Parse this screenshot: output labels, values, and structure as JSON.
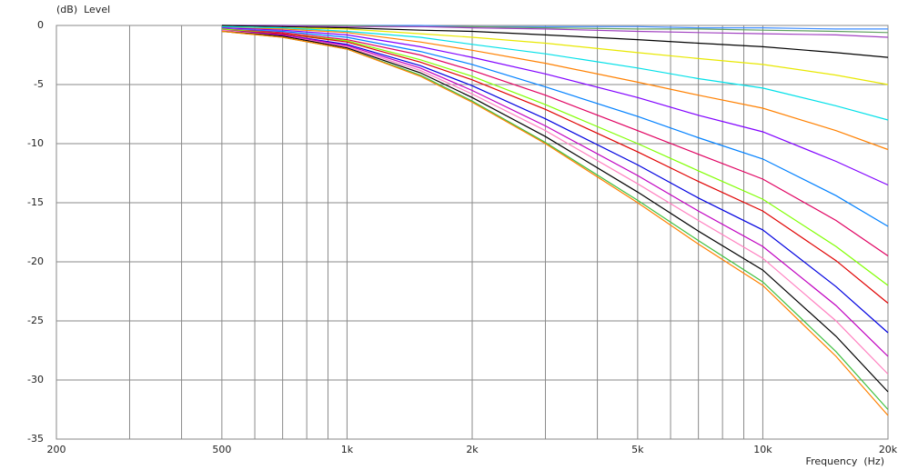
{
  "chart_data": {
    "type": "line",
    "y_label": "(dB)  Level",
    "x_label": "Frequency  (Hz)",
    "log_x": true,
    "grid": true,
    "xlim": [
      200,
      20000
    ],
    "ylim": [
      -35,
      0
    ],
    "xticks": [
      200,
      500,
      {
        "value": 1000,
        "label": "1k"
      },
      {
        "value": 2000,
        "label": "2k"
      },
      {
        "value": 5000,
        "label": "5k"
      },
      {
        "value": 10000,
        "label": "10k"
      },
      {
        "value": 20000,
        "label": "20k"
      }
    ],
    "x_minor_ticks": [
      300,
      400,
      600,
      700,
      800,
      900,
      3000,
      4000,
      6000,
      7000,
      8000,
      9000
    ],
    "yticks": [
      0,
      -5,
      -10,
      -15,
      -20,
      -25,
      -30,
      -35
    ],
    "x": [
      500,
      700,
      1000,
      1500,
      2000,
      3000,
      5000,
      7000,
      10000,
      15000,
      20000
    ],
    "series": [
      {
        "color": "#3d8cff",
        "values": [
          0,
          0,
          0,
          0,
          -0.1,
          -0.1,
          -0.1,
          -0.2,
          -0.2,
          -0.3,
          -0.3
        ]
      },
      {
        "color": "#5fa05f",
        "values": [
          0,
          0,
          0,
          -0.1,
          -0.1,
          -0.2,
          -0.3,
          -0.3,
          -0.4,
          -0.5,
          -0.6
        ]
      },
      {
        "color": "#a040c0",
        "values": [
          0,
          0,
          -0.1,
          -0.1,
          -0.2,
          -0.3,
          -0.5,
          -0.6,
          -0.7,
          -0.8,
          -1
        ]
      },
      {
        "color": "#000000",
        "values": [
          0,
          -0.1,
          -0.2,
          -0.4,
          -0.5,
          -0.8,
          -1.2,
          -1.5,
          -1.8,
          -2.3,
          -2.7
        ]
      },
      {
        "color": "#e8e800",
        "values": [
          -0.1,
          -0.2,
          -0.3,
          -0.7,
          -1,
          -1.5,
          -2.3,
          -2.8,
          -3.3,
          -4.2,
          -5
        ]
      },
      {
        "color": "#00e0e8",
        "values": [
          -0.1,
          -0.2,
          -0.5,
          -1,
          -1.6,
          -2.4,
          -3.6,
          -4.5,
          -5.3,
          -6.8,
          -8
        ]
      },
      {
        "color": "#ff8000",
        "values": [
          -0.2,
          -0.3,
          -0.6,
          -1.4,
          -2.1,
          -3.2,
          -4.8,
          -5.9,
          -7,
          -8.9,
          -10.5
        ]
      },
      {
        "color": "#8000ff",
        "values": [
          -0.2,
          -0.4,
          -0.8,
          -1.8,
          -2.7,
          -4.1,
          -6.1,
          -7.6,
          -9,
          -11.5,
          -13.5
        ]
      },
      {
        "color": "#0080ff",
        "values": [
          -0.3,
          -0.5,
          -1,
          -2.2,
          -3.3,
          -5.2,
          -7.7,
          -9.5,
          -11.3,
          -14.4,
          -17
        ]
      },
      {
        "color": "#e00060",
        "values": [
          -0.3,
          -0.6,
          -1.2,
          -2.5,
          -3.8,
          -5.9,
          -8.9,
          -10.9,
          -13,
          -16.5,
          -19.5
        ]
      },
      {
        "color": "#80ff00",
        "values": [
          -0.3,
          -0.7,
          -1.3,
          -2.9,
          -4.3,
          -6.7,
          -10,
          -12.3,
          -14.7,
          -18.7,
          -22
        ]
      },
      {
        "color": "#e00000",
        "values": [
          -0.4,
          -0.7,
          -1.4,
          -3.1,
          -4.6,
          -7.1,
          -10.7,
          -13.2,
          -15.7,
          -19.9,
          -23.5
        ]
      },
      {
        "color": "#0000e0",
        "values": [
          -0.4,
          -0.8,
          -1.6,
          -3.4,
          -5.1,
          -7.9,
          -11.8,
          -14.6,
          -17.3,
          -22.1,
          -26
        ]
      },
      {
        "color": "#c000c0",
        "values": [
          -0.4,
          -0.8,
          -1.7,
          -3.6,
          -5.5,
          -8.5,
          -12.7,
          -15.7,
          -18.7,
          -23.7,
          -28
        ]
      },
      {
        "color": "#ff80c0",
        "values": [
          -0.4,
          -0.9,
          -1.8,
          -3.8,
          -5.8,
          -8.9,
          -13.4,
          -16.5,
          -19.7,
          -25,
          -29.5
        ]
      },
      {
        "color": "#000000",
        "values": [
          -0.5,
          -0.9,
          -1.9,
          -4,
          -6.1,
          -9.4,
          -14.1,
          -17.4,
          -20.7,
          -26.3,
          -31
        ]
      },
      {
        "color": "#40c040",
        "values": [
          -0.5,
          -1,
          -2,
          -4.2,
          -6.4,
          -9.9,
          -14.8,
          -18.2,
          -21.7,
          -27.6,
          -32.5
        ]
      },
      {
        "color": "#ff8000",
        "values": [
          -0.5,
          -1,
          -2,
          -4.3,
          -6.5,
          -10,
          -15,
          -18.5,
          -22,
          -28,
          -33
        ]
      }
    ]
  }
}
